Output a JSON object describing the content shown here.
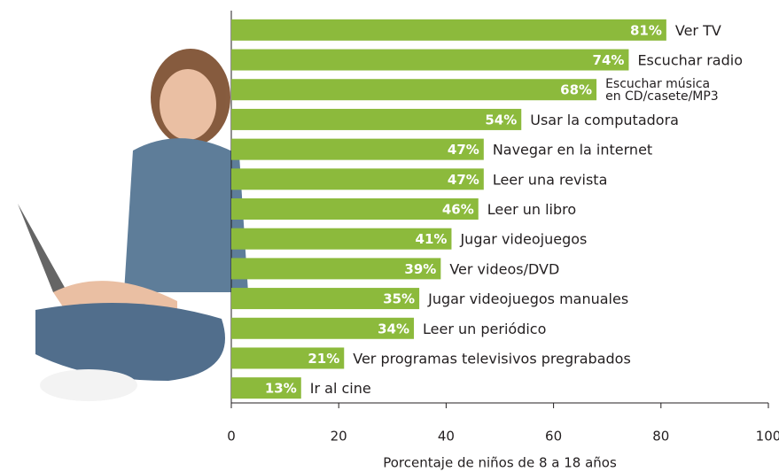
{
  "chart_data": {
    "type": "barh",
    "categories": [
      "Ver TV",
      "Escuchar radio",
      "Escuchar música\nen CD/casete/MP3",
      "Usar la computadora",
      "Navegar en la internet",
      "Leer una revista",
      "Leer un libro",
      "Jugar videojuegos",
      "Ver videos/DVD",
      "Jugar videojuegos manuales",
      "Leer un periódico",
      "Ver programas televisivos pregrabados",
      "Ir al cine"
    ],
    "values": [
      81,
      74,
      68,
      54,
      47,
      47,
      46,
      41,
      39,
      35,
      34,
      21,
      13
    ],
    "value_labels": [
      "81%",
      "74%",
      "68%",
      "54%",
      "47%",
      "47%",
      "46%",
      "41%",
      "39%",
      "35%",
      "34%",
      "21%",
      "13%"
    ],
    "color": "#8cba3c",
    "xlabel": "Porcentaje de niños de 8 a 18 años",
    "xlim": [
      0,
      100
    ],
    "xticks": [
      0,
      20,
      40,
      60,
      80,
      100
    ]
  }
}
